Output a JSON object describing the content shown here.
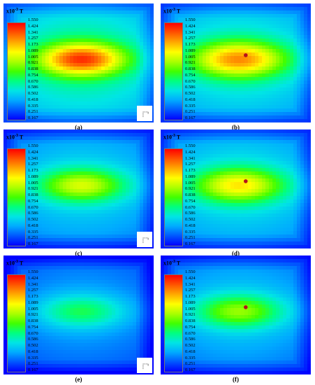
{
  "colorbar": {
    "unit_prefix": "x10",
    "unit_exp": "-3",
    "unit": "T",
    "ticks": [
      "1.550",
      "1.424",
      "1.341",
      "1.257",
      "1.173",
      "1.089",
      "1.005",
      "0.921",
      "0.838",
      "0.754",
      "0.670",
      "0.586",
      "0.502",
      "0.418",
      "0.335",
      "0.251",
      "0.167"
    ]
  },
  "panels": [
    {
      "caption": "(a)",
      "has_marker": false,
      "has_corner_icon": true,
      "peak": 1.45,
      "spread": 1.0
    },
    {
      "caption": "(b)",
      "has_marker": true,
      "has_corner_icon": false,
      "peak": 1.3,
      "spread": 1.1
    },
    {
      "caption": "(c)",
      "has_marker": false,
      "has_corner_icon": true,
      "peak": 1.05,
      "spread": 1.0
    },
    {
      "caption": "(d)",
      "has_marker": true,
      "has_corner_icon": false,
      "peak": 1.15,
      "spread": 1.05
    },
    {
      "caption": "(e)",
      "has_marker": false,
      "has_corner_icon": true,
      "peak": 0.75,
      "spread": 1.0
    },
    {
      "caption": "(f)",
      "has_marker": true,
      "has_corner_icon": false,
      "peak": 0.95,
      "spread": 1.0
    }
  ],
  "colors": {
    "marker": "#b5121b",
    "bg_low": "#1d4fff",
    "scale": [
      "#0000ff",
      "#0055ff",
      "#00aaff",
      "#00e5e5",
      "#00ff80",
      "#40ff00",
      "#aaff00",
      "#ffff00",
      "#ffaa00",
      "#ff5500",
      "#ff0000"
    ]
  }
}
